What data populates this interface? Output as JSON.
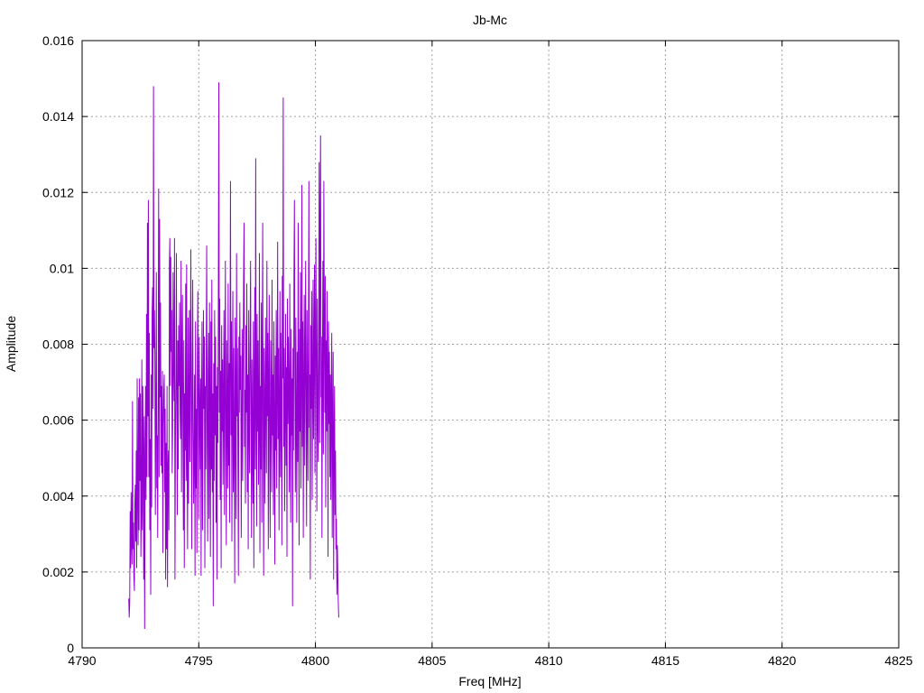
{
  "chart_data": {
    "type": "line",
    "title": "Jb-Mc",
    "xlabel": "Freq [MHz]",
    "ylabel": "Amplitude",
    "xlim": [
      4790,
      4825
    ],
    "ylim": [
      0,
      0.016
    ],
    "x_ticks": [
      4790,
      4795,
      4800,
      4805,
      4810,
      4815,
      4820,
      4825
    ],
    "x_tick_labels": [
      "4790",
      "4795",
      "4800",
      "4805",
      "4810",
      "4815",
      "4820",
      "4825"
    ],
    "y_ticks": [
      0,
      0.002,
      0.004,
      0.006,
      0.008,
      0.01,
      0.012,
      0.014,
      0.016
    ],
    "y_tick_labels": [
      "0",
      "0.002",
      "0.004",
      "0.006",
      "0.008",
      "0.01",
      "0.012",
      "0.014",
      "0.016"
    ],
    "grid": true,
    "legend": "none",
    "series": [
      {
        "color": "#9400d3",
        "x_start": 4792.0,
        "x_step": 0.02,
        "values": [
          0.0013,
          0.0008,
          0.0012,
          0.0036,
          0.0021,
          0.0041,
          0.0028,
          0.0022,
          0.0065,
          0.0026,
          0.0033,
          0.0019,
          0.0015,
          0.0038,
          0.0043,
          0.0028,
          0.0052,
          0.0021,
          0.0071,
          0.0041,
          0.0027,
          0.0066,
          0.0031,
          0.0071,
          0.0044,
          0.0067,
          0.0024,
          0.0036,
          0.0076,
          0.0031,
          0.0069,
          0.0051,
          0.0018,
          0.0061,
          0.0005,
          0.0046,
          0.0069,
          0.0039,
          0.0088,
          0.0045,
          0.0112,
          0.0061,
          0.0118,
          0.0045,
          0.0083,
          0.0031,
          0.0055,
          0.0014,
          0.0072,
          0.0037,
          0.0088,
          0.0095,
          0.0063,
          0.0148,
          0.0079,
          0.0089,
          0.0076,
          0.0035,
          0.0063,
          0.0099,
          0.0042,
          0.0056,
          0.0029,
          0.0071,
          0.0121,
          0.0045,
          0.0113,
          0.0066,
          0.0091,
          0.0048,
          0.0069,
          0.0046,
          0.0073,
          0.0025,
          0.0059,
          0.0068,
          0.0072,
          0.0041,
          0.0063,
          0.0018,
          0.0054,
          0.0026,
          0.0069,
          0.0016,
          0.0047,
          0.0052,
          0.0031,
          0.0101,
          0.0108,
          0.0069,
          0.0103,
          0.0078,
          0.0089,
          0.0046,
          0.0058,
          0.0099,
          0.0075,
          0.0065,
          0.0108,
          0.0018,
          0.0054,
          0.0071,
          0.0104,
          0.0062,
          0.0035,
          0.0081,
          0.0047,
          0.0085,
          0.0069,
          0.0091,
          0.0062,
          0.0055,
          0.0102,
          0.0041,
          0.0076,
          0.0093,
          0.0059,
          0.0031,
          0.0081,
          0.0021,
          0.0067,
          0.0052,
          0.0096,
          0.0044,
          0.0101,
          0.0052,
          0.0026,
          0.0087,
          0.0038,
          0.0063,
          0.0089,
          0.0049,
          0.0078,
          0.0105,
          0.0061,
          0.0026,
          0.0071,
          0.0097,
          0.0057,
          0.0038,
          0.0052,
          0.0072,
          0.0019,
          0.0086,
          0.0042,
          0.0063,
          0.0025,
          0.0077,
          0.0094,
          0.0056,
          0.0034,
          0.0082,
          0.0062,
          0.0047,
          0.0071,
          0.0019,
          0.0068,
          0.0086,
          0.0031,
          0.0056,
          0.0089,
          0.0063,
          0.0082,
          0.0021,
          0.0069,
          0.0047,
          0.0079,
          0.0106,
          0.0052,
          0.0028,
          0.0072,
          0.0083,
          0.0034,
          0.0091,
          0.0059,
          0.0024,
          0.0086,
          0.0047,
          0.0097,
          0.0041,
          0.0067,
          0.0011,
          0.0075,
          0.0044,
          0.0089,
          0.0056,
          0.0082,
          0.0033,
          0.0069,
          0.0018,
          0.0074,
          0.0054,
          0.0094,
          0.0149,
          0.0062,
          0.0092,
          0.0039,
          0.0073,
          0.0021,
          0.0085,
          0.0057,
          0.0076,
          0.0043,
          0.0066,
          0.0089,
          0.0035,
          0.0071,
          0.0102,
          0.0052,
          0.0027,
          0.0081,
          0.0063,
          0.0042,
          0.0096,
          0.0048,
          0.0075,
          0.0033,
          0.0079,
          0.0123,
          0.0056,
          0.0086,
          0.0028,
          0.0067,
          0.0094,
          0.0041,
          0.0079,
          0.0053,
          0.0017,
          0.0087,
          0.0062,
          0.0034,
          0.0104,
          0.0061,
          0.0079,
          0.0048,
          0.0019,
          0.0082,
          0.0062,
          0.0091,
          0.0068,
          0.0077,
          0.0029,
          0.0057,
          0.0084,
          0.0044,
          0.0071,
          0.0097,
          0.0112,
          0.0053,
          0.0068,
          0.0038,
          0.0085,
          0.0062,
          0.0096,
          0.0041,
          0.0072,
          0.0026,
          0.0089,
          0.0059,
          0.0046,
          0.0081,
          0.0102,
          0.0064,
          0.0029,
          0.0076,
          0.0052,
          0.0038,
          0.0086,
          0.0021,
          0.0069,
          0.0095,
          0.0047,
          0.0129,
          0.0065,
          0.0032,
          0.0088,
          0.0057,
          0.0081,
          0.0043,
          0.0061,
          0.0104,
          0.0025,
          0.0069,
          0.0047,
          0.0091,
          0.0033,
          0.0074,
          0.0112,
          0.0052,
          0.0019,
          0.0079,
          0.0063,
          0.0038,
          0.0087,
          0.0066,
          0.0046,
          0.0102,
          0.0061,
          0.0083,
          0.0026,
          0.0071,
          0.0093,
          0.0049,
          0.0029,
          0.0081,
          0.0064,
          0.0041,
          0.0097,
          0.0056,
          0.0072,
          0.0035,
          0.0086,
          0.0059,
          0.0022,
          0.0077,
          0.0052,
          0.0089,
          0.0042,
          0.0068,
          0.0107,
          0.0055,
          0.0079,
          0.0031,
          0.0062,
          0.0094,
          0.0045,
          0.0083,
          0.0061,
          0.0027,
          0.0098,
          0.0071,
          0.0145,
          0.0053,
          0.0079,
          0.0036,
          0.0065,
          0.0088,
          0.0048,
          0.0074,
          0.0024,
          0.0092,
          0.0059,
          0.0082,
          0.0067,
          0.0041,
          0.0096,
          0.0062,
          0.0033,
          0.0084,
          0.0056,
          0.0071,
          0.0011,
          0.0079,
          0.0052,
          0.0098,
          0.0118,
          0.0069,
          0.0041,
          0.0087,
          0.0061,
          0.0033,
          0.0078,
          0.0049,
          0.0112,
          0.0065,
          0.0027,
          0.0084,
          0.0057,
          0.0099,
          0.0042,
          0.0071,
          0.0122,
          0.0053,
          0.0086,
          0.0029,
          0.0067,
          0.0093,
          0.0048,
          0.0075,
          0.0102,
          0.0061,
          0.0032,
          0.0089,
          0.0066,
          0.0044,
          0.0081,
          0.0123,
          0.0058,
          0.0072,
          0.0018,
          0.0085,
          0.0063,
          0.0094,
          0.0039,
          0.0068,
          0.0097,
          0.0055,
          0.0079,
          0.0101,
          0.0046,
          0.0083,
          0.0108,
          0.0069,
          0.0036,
          0.0092,
          0.0061,
          0.0049,
          0.0077,
          0.0128,
          0.0054,
          0.0112,
          0.0135,
          0.0066,
          0.0082,
          0.0029,
          0.0073,
          0.0102,
          0.0051,
          0.0123,
          0.0084,
          0.0062,
          0.0098,
          0.0037,
          0.0081,
          0.0057,
          0.0094,
          0.0071,
          0.0024,
          0.0086,
          0.0059,
          0.0078,
          0.0045,
          0.0072,
          0.0039,
          0.0066,
          0.0083,
          0.0029,
          0.0061,
          0.0078,
          0.0018,
          0.0056,
          0.0069,
          0.0035,
          0.0052,
          0.0026,
          0.0034,
          0.0014,
          0.0027,
          0.0019,
          0.0012,
          0.0008
        ]
      }
    ]
  }
}
